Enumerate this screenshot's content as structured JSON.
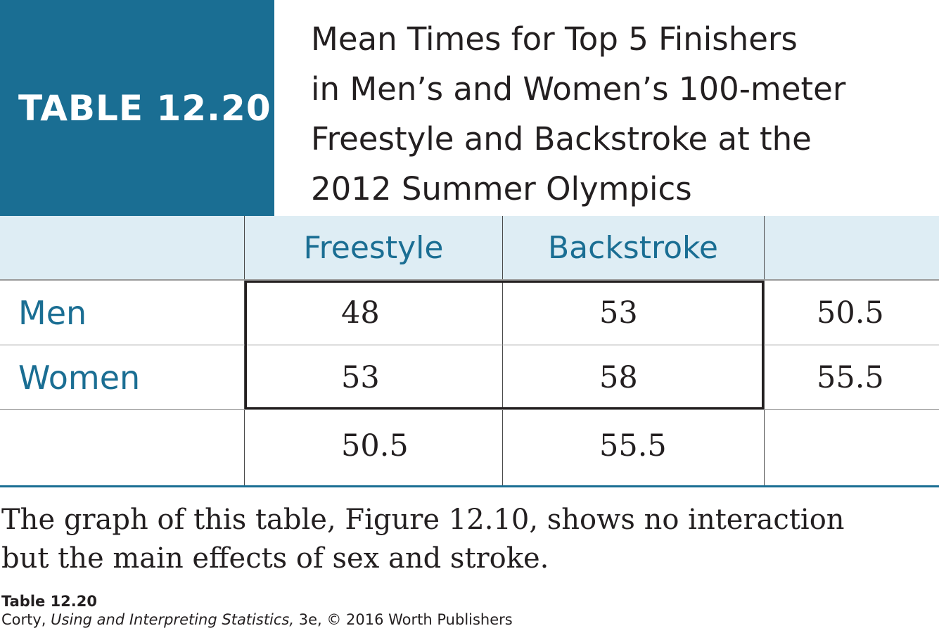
{
  "table_label": "TABLE 12.20",
  "title_lines": [
    "Mean Times for Top 5 Finishers",
    "in Men’s and Women’s 100-meter",
    "Freestyle and Backstroke at the",
    "2012 Summer Olympics"
  ],
  "columns": [
    "Freestyle",
    "Backstroke"
  ],
  "rows": [
    {
      "label": "Men",
      "values": [
        "48",
        "53"
      ],
      "row_mean": "50.5"
    },
    {
      "label": "Women",
      "values": [
        "53",
        "58"
      ],
      "row_mean": "55.5"
    }
  ],
  "column_means": [
    "50.5",
    "55.5"
  ],
  "caption_lines": [
    "The graph of this table, Figure 12.10, shows no interaction",
    "but the main effects of sex and stroke."
  ],
  "credit": {
    "title": "Table 12.20",
    "author": "Corty, ",
    "book": "Using and Interpreting Statistics,",
    "rest": " 3e, © 2016 Worth Publishers"
  }
}
